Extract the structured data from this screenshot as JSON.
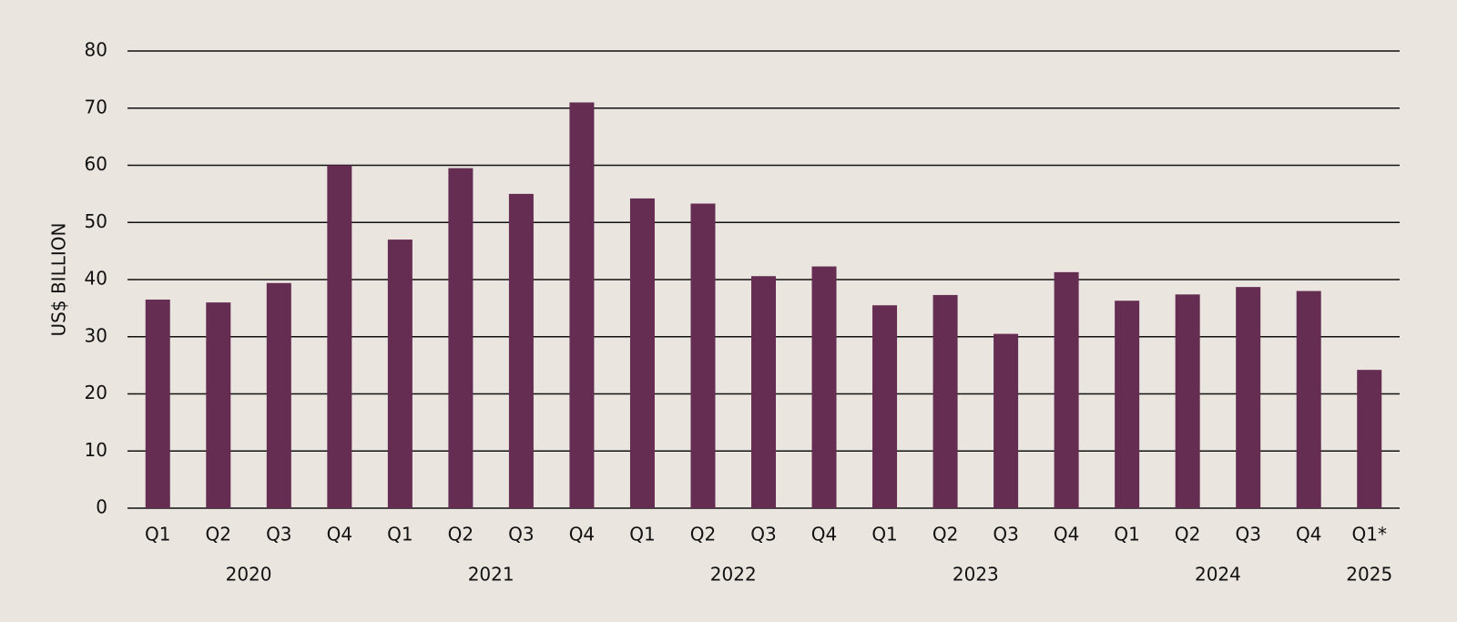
{
  "chart_data": {
    "type": "bar",
    "y_label": "US$ BILLION",
    "color": "#662d52",
    "groups": [
      {
        "label": "2020",
        "categories": [
          "Q1",
          "Q2",
          "Q3",
          "Q4"
        ],
        "values": [
          36.5,
          36,
          39.4,
          60
        ]
      },
      {
        "label": "2021",
        "categories": [
          "Q1",
          "Q2",
          "Q3",
          "Q4"
        ],
        "values": [
          47,
          59.5,
          55,
          71
        ]
      },
      {
        "label": "2022",
        "categories": [
          "Q1",
          "Q2",
          "Q3",
          "Q4"
        ],
        "values": [
          54.2,
          53.3,
          40.6,
          42.3
        ]
      },
      {
        "label": "2023",
        "categories": [
          "Q1",
          "Q2",
          "Q3",
          "Q4"
        ],
        "values": [
          35.5,
          37.3,
          30.5,
          41.3
        ]
      },
      {
        "label": "2024",
        "categories": [
          "Q1",
          "Q2",
          "Q3",
          "Q4"
        ],
        "values": [
          36.3,
          37.4,
          38.7,
          38
        ]
      },
      {
        "label": "2025",
        "categories": [
          "Q1*"
        ],
        "values": [
          24.2
        ]
      }
    ],
    "ylim": [
      0,
      80
    ],
    "yticks": [
      0,
      10,
      20,
      30,
      40,
      50,
      60,
      70,
      80
    ],
    "grid": true
  }
}
